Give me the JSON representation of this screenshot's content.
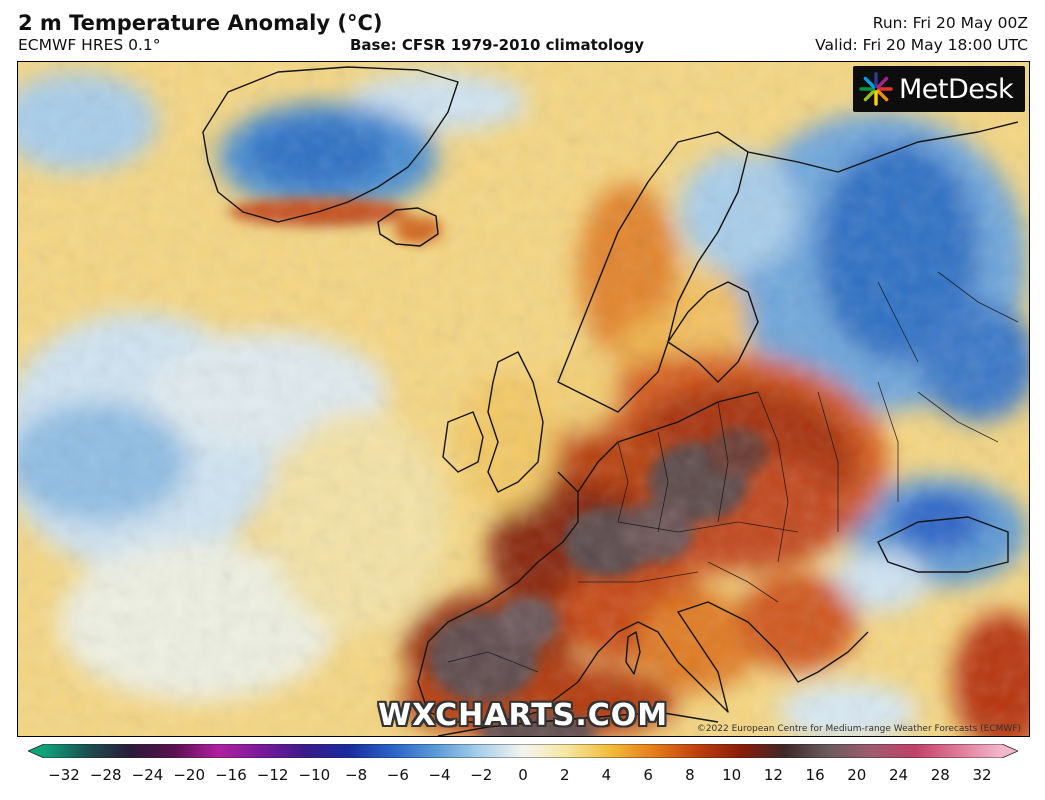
{
  "header": {
    "title": "2 m Temperature Anomaly (°C)",
    "model": "ECMWF HRES 0.1°",
    "base": "Base: CFSR 1979-2010 climatology",
    "run": "Run: Fri 20 May 00Z",
    "valid": "Valid: Fri 20 May 18:00 UTC"
  },
  "logo": {
    "text": "MetDesk",
    "icon": "metdesk-burst-icon"
  },
  "watermark": "WXCHARTS.COM",
  "copyright": "©2022 European Centre for Medium-range Weather Forecasts (ECMWF)",
  "colorbar": {
    "ticks": [
      "−32",
      "−28",
      "−24",
      "−20",
      "−16",
      "−12",
      "−10",
      "−8",
      "−6",
      "−4",
      "−2",
      "0",
      "2",
      "4",
      "6",
      "8",
      "10",
      "12",
      "16",
      "20",
      "24",
      "28",
      "32"
    ],
    "stops": [
      "#0fa37a",
      "#1b4f50",
      "#2a1a3a",
      "#5a1050",
      "#b020a0",
      "#7a1a9a",
      "#3a1a8a",
      "#1a2aa0",
      "#2a64c8",
      "#5a9ad8",
      "#a8d0ec",
      "#f4f4f0",
      "#f6e7a0",
      "#f2bc3a",
      "#e57c1a",
      "#c0400c",
      "#8a1c0a",
      "#3e2828",
      "#6a5a5e",
      "#a05a70",
      "#c04068",
      "#e07a9a",
      "#f3b7cc"
    ],
    "unit": "°C"
  },
  "map": {
    "projection": "Europe / North Atlantic",
    "palette": {
      "strong_cold": "#2d6fc4",
      "cold": "#7fb2df",
      "cool": "#cfe4f2",
      "neutral": "#f2ecd8",
      "warm": "#f4d27e",
      "hot": "#e8932a",
      "very_hot": "#bf3e10",
      "extreme": "#7a1e0e",
      "record": "#5a4a4c"
    }
  }
}
